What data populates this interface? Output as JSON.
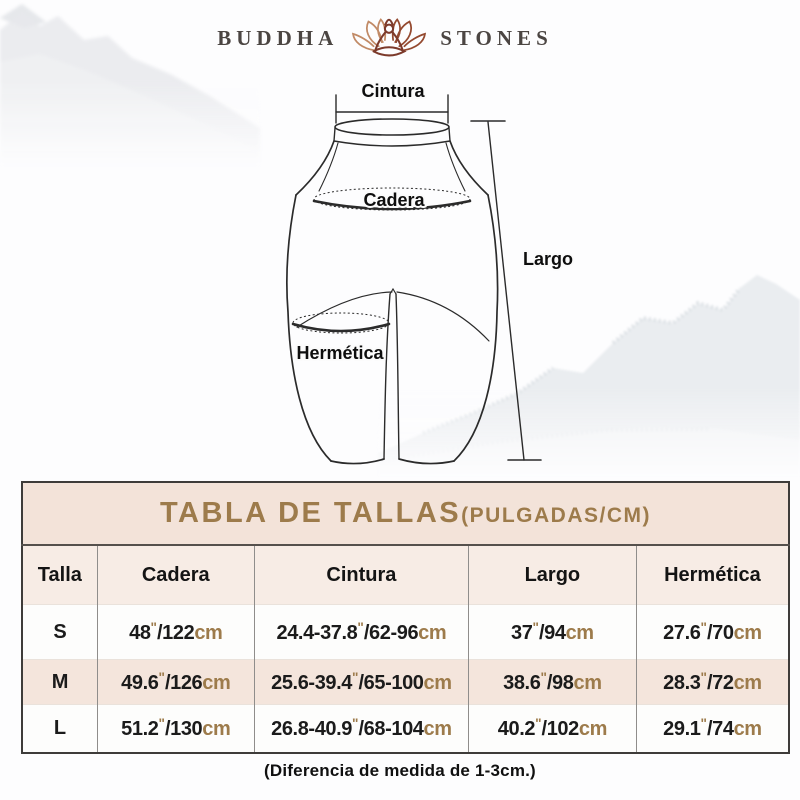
{
  "brand": {
    "name_left": "BUDDHA",
    "name_right": "STONES"
  },
  "diagram": {
    "cintura": "Cintura",
    "cadera": "Cadera",
    "largo": "Largo",
    "hermetica": "Hermética"
  },
  "size_table": {
    "title": "TABLA DE TALLAS",
    "title_suffix": "(PULGADAS/CM)",
    "columns": [
      "Talla",
      "Cadera",
      "Cintura",
      "Largo",
      "Hermética"
    ],
    "rows": [
      {
        "talla": "S",
        "cadera": "48\"/122cm",
        "cintura": "24.4-37.8\"/62-96cm",
        "largo": "37\"/94cm",
        "hermetica": "27.6\"/70cm"
      },
      {
        "talla": "M",
        "cadera": "49.6\"/126cm",
        "cintura": "25.6-39.4\"/65-100cm",
        "largo": "38.6\"/98cm",
        "hermetica": "28.3\"/72cm"
      },
      {
        "talla": "L",
        "cadera": "51.2\"/130cm",
        "cintura": "26.8-40.9\"/68-104cm",
        "largo": "40.2\"/102cm",
        "hermetica": "29.1\"/74cm"
      }
    ],
    "note": "(Diferencia de medida de 1-3cm.)"
  },
  "colors": {
    "accent_gold": "#9d7b4b",
    "title_row_bg": "#f3e3d9",
    "header_row_bg": "#f7ece5",
    "alt_row_bg": "#f4e5dc",
    "row_bg": "#fdfdfc",
    "line_art": "#2b2b2b",
    "logo_figure": "#7c3a2b",
    "logo_petal_light": "#c18a66",
    "logo_petal_dark": "#94492f"
  }
}
